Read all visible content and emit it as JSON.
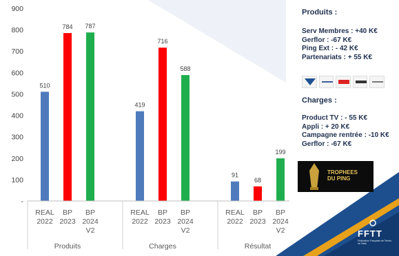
{
  "chart_data": {
    "type": "bar",
    "ylim": [
      0,
      900
    ],
    "yticks": [
      "0",
      "100",
      "200",
      "300",
      "400",
      "500",
      "600",
      "700",
      "800",
      "900"
    ],
    "grid": false,
    "groups": [
      {
        "label": "Produits",
        "bars": [
          {
            "label": [
              "REAL",
              "2022"
            ],
            "value": 510,
            "color": "#4f7bbd"
          },
          {
            "label": [
              "BP",
              "2023"
            ],
            "value": 784,
            "color": "#ff0000"
          },
          {
            "label": [
              "BP",
              "2024",
              "V2"
            ],
            "value": 787,
            "color": "#1fae4d"
          }
        ]
      },
      {
        "label": "Charges",
        "bars": [
          {
            "label": [
              "REAL",
              "2022"
            ],
            "value": 419,
            "color": "#4f7bbd"
          },
          {
            "label": [
              "BP",
              "2023"
            ],
            "value": 716,
            "color": "#ff0000"
          },
          {
            "label": [
              "BP",
              "2024",
              "V2"
            ],
            "value": 588,
            "color": "#1fae4d"
          }
        ]
      },
      {
        "label": "Résultat",
        "bars": [
          {
            "label": [
              "REAL",
              "2022"
            ],
            "value": 91,
            "color": "#4f7bbd"
          },
          {
            "label": [
              "BP",
              "2023"
            ],
            "value": 68,
            "color": "#ff0000"
          },
          {
            "label": [
              "BP",
              "2024",
              "V2"
            ],
            "value": 199,
            "color": "#1fae4d"
          }
        ]
      }
    ]
  },
  "sidebar": {
    "produits_title": "Produits :",
    "produits_lines": [
      "Serv Membres : +40 K€",
      "Gerflor : -67 K€",
      "Ping Ext : - 42 K€",
      "Partenariats : + 55 K€"
    ],
    "sponsor_logos": [
      "victas-logo",
      "cornilleau-logo",
      "nomalu-logo",
      "gerflor-logo",
      "butterfly-logo"
    ],
    "charges_title": "Charges :",
    "charges_lines": [
      "Product TV : - 55 K€",
      "Appli : + 20 K€",
      "Campagne rentrée : -10 K€",
      "Gerflor : -67 K€"
    ],
    "trophees_lines": [
      "TROPHEES",
      "DU PING"
    ]
  },
  "footer": {
    "brand": "FFTT",
    "brand_sub": "Fédération Française de Tennis de Table"
  },
  "colors": {
    "real": "#4f7bbd",
    "bp2023": "#ff0000",
    "bp2024": "#1fae4d",
    "navy": "#1f3050",
    "fftt_blue": "#1d4f8f",
    "accent": "#e8a11a"
  }
}
